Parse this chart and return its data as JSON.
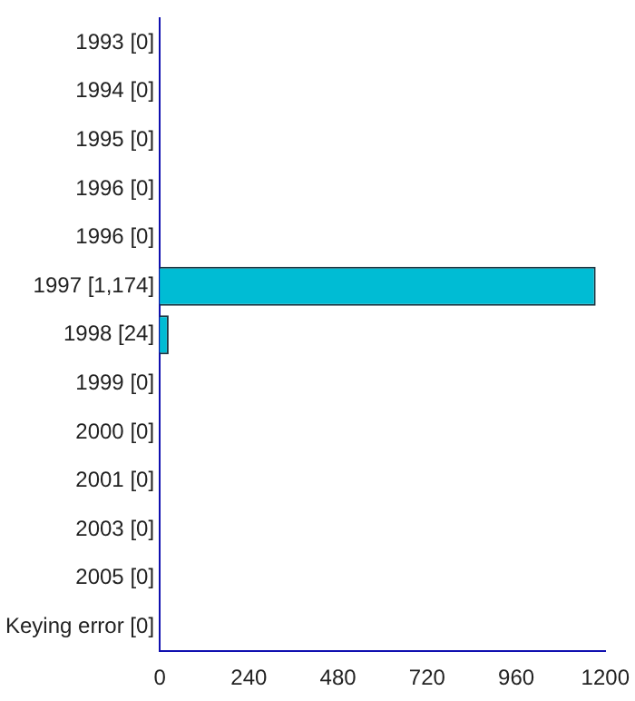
{
  "chart_data": {
    "type": "bar",
    "orientation": "horizontal",
    "categories": [
      "1993 [0]",
      "1994 [0]",
      "1995 [0]",
      "1996 [0]",
      "1996 [0]",
      "1997 [1,174]",
      "1998 [24]",
      "1999 [0]",
      "2000 [0]",
      "2001 [0]",
      "2003 [0]",
      "2005 [0]",
      "Keying error [0]"
    ],
    "values": [
      0,
      0,
      0,
      0,
      0,
      1174,
      24,
      0,
      0,
      0,
      0,
      0,
      0
    ],
    "color": "#00bcd4",
    "xlim": [
      0,
      1200
    ],
    "xticks": [
      0,
      240,
      480,
      720,
      960,
      1200
    ],
    "grid": false,
    "legend": false
  }
}
